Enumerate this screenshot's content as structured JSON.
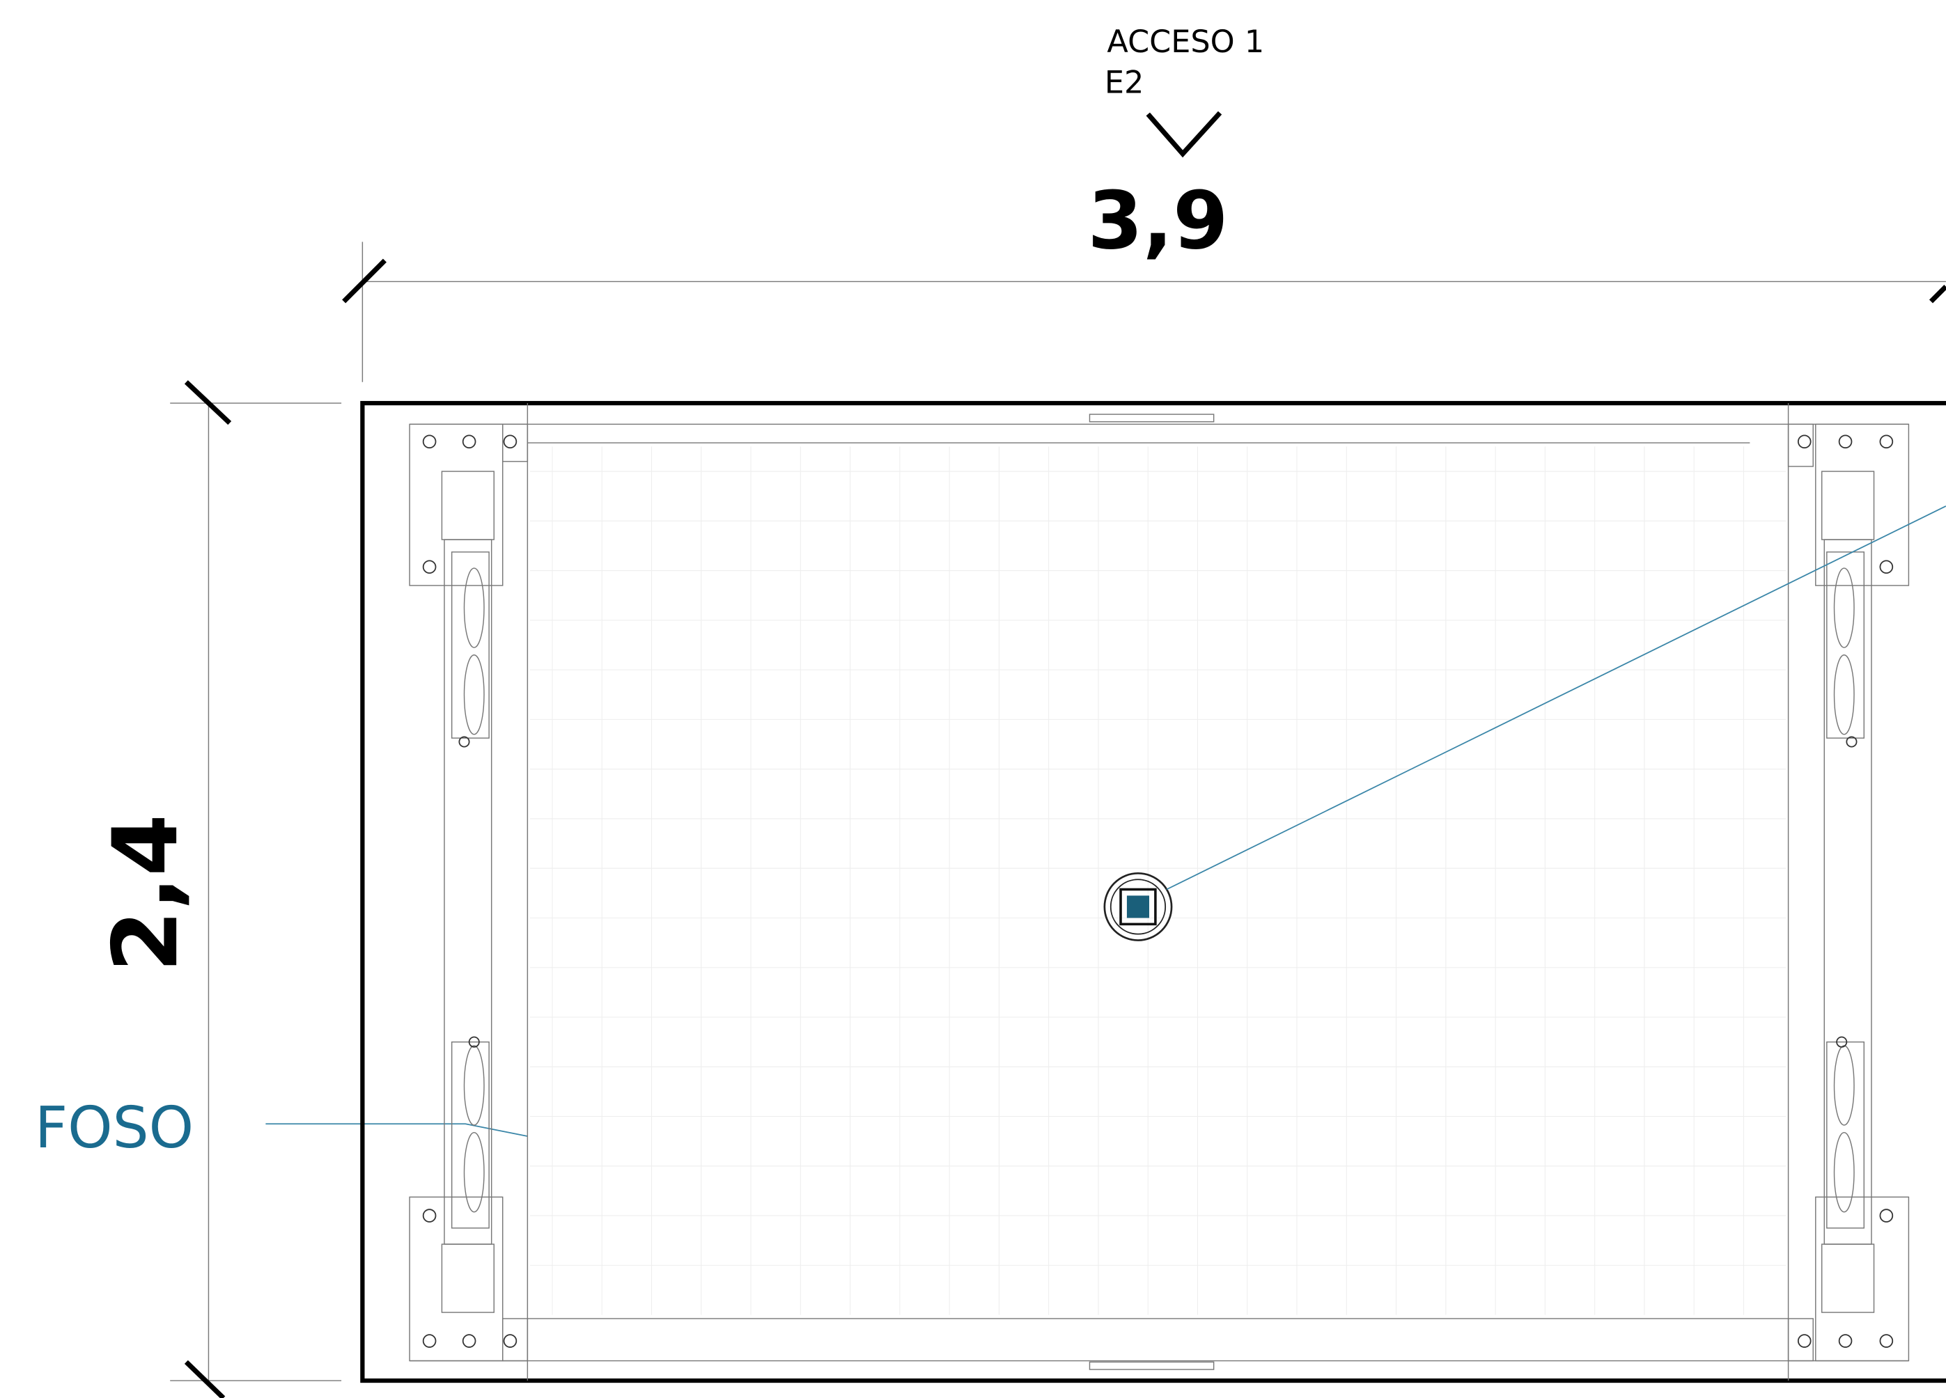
{
  "labels": {
    "access": "ACCESO 1",
    "level": "E2",
    "width": "3,9",
    "height": "2,4",
    "pit": "FOSO"
  }
}
